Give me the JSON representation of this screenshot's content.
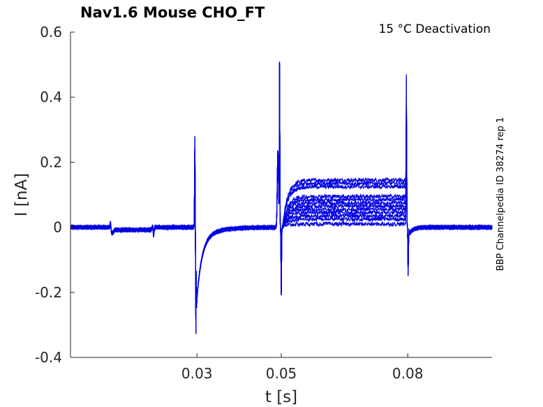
{
  "chart_data": {
    "type": "line",
    "title": "Nav1.6  Mouse  CHO_FT",
    "annotation": "15 °C  Deactivation",
    "side_label": "BBP Channelpedia ID 38274 rep 1",
    "xlabel": "t [s]",
    "ylabel": "I [nA]",
    "xlim": [
      0.0,
      0.1
    ],
    "ylim": [
      -0.4,
      0.6
    ],
    "xticks": [
      0.03,
      0.05,
      0.08
    ],
    "xtick_labels": [
      "0.03",
      "0.05",
      "0.08"
    ],
    "yticks": [
      -0.4,
      -0.2,
      0,
      0.2,
      0.4,
      0.6
    ],
    "ytick_labels": [
      "-0.4",
      "-0.2",
      "0",
      "0.2",
      "0.4",
      "0.6"
    ],
    "grid": false,
    "color": "#0000e0",
    "num_sweeps": 12,
    "events": {
      "small_step_1": 0.0095,
      "small_step_2": 0.0195,
      "activation_pulse": 0.0295,
      "test_step_on": 0.0495,
      "test_step_off": 0.0797
    },
    "peaks": {
      "activation_max": 0.275,
      "activation_min": -0.325,
      "test_on_max": 0.52,
      "test_on_min": -0.205,
      "test_off_max": 0.385,
      "test_off_min": -0.15
    },
    "plateau_levels": [
      0.145,
      0.135,
      0.125,
      0.095,
      0.085,
      0.075,
      0.065,
      0.055,
      0.045,
      0.035,
      0.025,
      0.01
    ]
  }
}
